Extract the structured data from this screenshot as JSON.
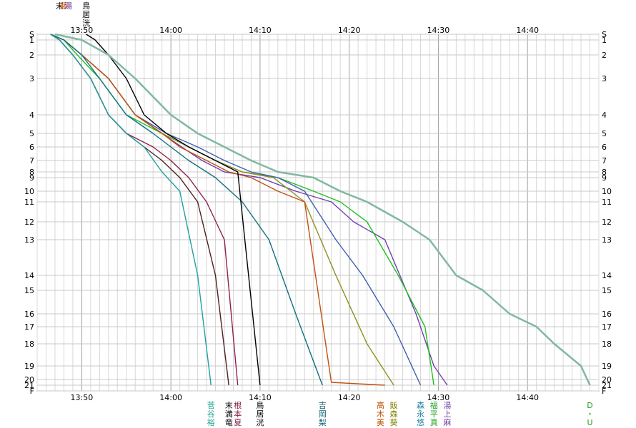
{
  "chart_data": {
    "type": "line",
    "title": "",
    "xlabel": "",
    "ylabel": "",
    "x_ticks": [
      "13:50",
      "14:00",
      "14:10",
      "14:20",
      "14:30",
      "14:40"
    ],
    "x_range": [
      "13:45",
      "14:48"
    ],
    "y_ticks": [
      "S",
      "1",
      "2",
      "3",
      "4",
      "5",
      "6",
      "7",
      "8",
      "9",
      "10",
      "11",
      "12",
      "13",
      "14",
      "15",
      "16",
      "17",
      "18",
      "19",
      "20",
      "21",
      "F"
    ],
    "grid": true,
    "legend": "labels at line ends (top and bottom)",
    "top_labels": [
      {
        "text": "末",
        "x": "13:47.5",
        "color": "#000000"
      },
      {
        "text": "藤",
        "x": "13:48.0",
        "color": "#c05000"
      },
      {
        "text": "湯",
        "x": "13:48.5",
        "color": "#7040a0"
      },
      {
        "text": "鳥居洸",
        "x": "13:50.5",
        "color": "#000000"
      }
    ],
    "bottom_labels": [
      {
        "text": "菅谷裕",
        "x": "14:04.5",
        "color": "#20a090"
      },
      {
        "text": "末満竜",
        "x": "14:06.5",
        "color": "#000000"
      },
      {
        "text": "根本夏",
        "x": "14:07.5",
        "color": "#802040"
      },
      {
        "text": "鳥居洸",
        "x": "14:10.0",
        "color": "#000000"
      },
      {
        "text": "吉岡梨",
        "x": "14:17.0",
        "color": "#106070"
      },
      {
        "text": "高木美",
        "x": "14:23.5",
        "color": "#c05000"
      },
      {
        "text": "飯森葵",
        "x": "14:25.0",
        "color": "#808000"
      },
      {
        "text": "森永悠",
        "x": "14:28.0",
        "color": "#2080a0"
      },
      {
        "text": "福平真",
        "x": "14:29.5",
        "color": "#20a020"
      },
      {
        "text": "湯上麻",
        "x": "14:31.0",
        "color": "#7040a0"
      },
      {
        "text": "D・U・B",
        "x": "14:47.0",
        "color": "#20a020"
      }
    ],
    "series": [
      {
        "name": "湯上麻",
        "color": "#7040b0",
        "x": [
          "13:46.5",
          "13:48.0",
          "13:50.0",
          "13:53.0",
          "13:56.0",
          "13:59.0",
          "14:01.2",
          "14:03.5",
          "14:06.0",
          "14:10.0",
          "14:14.0",
          "14:18.0",
          "14:20.5",
          "14:24.0",
          "14:27.5",
          "14:29.5",
          "14:31.0"
        ],
        "y": [
          0,
          1,
          2,
          3,
          4,
          5,
          6,
          7,
          8,
          9,
          10,
          11,
          12,
          13,
          16,
          19,
          21
        ]
      },
      {
        "name": "福平真",
        "color": "#20c020",
        "x": [
          "13:46.5",
          "13:48.0",
          "13:49.5",
          "13:52.0",
          "13:55.0",
          "13:59.0",
          "14:02.0",
          "14:05.0",
          "14:08.0",
          "14:12.0",
          "14:16.0",
          "14:19.0",
          "14:22.0",
          "14:25.5",
          "14:28.5",
          "14:29.5"
        ],
        "y": [
          0,
          1,
          2,
          3,
          4,
          5,
          6,
          7,
          8,
          9,
          10,
          11,
          12,
          14,
          17,
          21
        ]
      },
      {
        "name": "森永悠",
        "color": "#4060b0",
        "x": [
          "13:46.5",
          "13:48.0",
          "13:50.0",
          "13:53.0",
          "13:56.0",
          "13:59.5",
          "14:03.0",
          "14:06.0",
          "14:09.0",
          "14:12.0",
          "14:15.0",
          "14:18.5",
          "14:20.0",
          "14:21.5",
          "14:25.0",
          "14:28.0"
        ],
        "y": [
          0,
          1,
          2,
          3,
          4,
          5,
          6,
          7,
          8,
          9,
          10,
          13,
          13.5,
          14,
          17,
          21
        ]
      },
      {
        "name": "飯森葵",
        "color": "#909020",
        "x": [
          "13:46.5",
          "13:48.0",
          "13:50.0",
          "13:53.0",
          "13:56.0",
          "13:59.0",
          "14:02.0",
          "14:05.0",
          "14:08.0",
          "14:11.5",
          "14:15.0",
          "14:18.5",
          "14:22.0",
          "14:25.0"
        ],
        "y": [
          0,
          1,
          2,
          3,
          4,
          5,
          6,
          7,
          8,
          9,
          11,
          14,
          18,
          21
        ]
      },
      {
        "name": "高木美",
        "color": "#c05010",
        "x": [
          "13:46.5",
          "13:48.0",
          "13:50.0",
          "13:53.0",
          "13:56.0",
          "13:59.0",
          "14:01.0",
          "14:04.0",
          "14:06.5",
          "14:09.0",
          "14:12.0",
          "14:15.0",
          "14:18.0",
          "14:24.0"
        ],
        "y": [
          0,
          1,
          2,
          3,
          4,
          5,
          6,
          7,
          8,
          9,
          10,
          11,
          20.5,
          21
        ]
      },
      {
        "name": "吉岡梨",
        "color": "#107080",
        "x": [
          "13:46.5",
          "13:48.0",
          "13:50.0",
          "13:52.0",
          "13:55.0",
          "13:58.0",
          "14:00.0",
          "14:02.0",
          "14:05.0",
          "14:08.0",
          "14:11.0",
          "14:14.0",
          "14:17.0"
        ],
        "y": [
          0,
          1,
          2,
          3,
          4,
          5,
          6,
          7,
          9,
          11,
          13,
          16,
          21
        ]
      },
      {
        "name": "鳥居洸",
        "color": "#000000",
        "x": [
          "13:50.5",
          "13:51.5",
          "13:53.0",
          "13:55.0",
          "13:57.0",
          "13:59.5",
          "14:02.0",
          "14:05.0",
          "14:07.5",
          "14:10.0"
        ],
        "y": [
          0,
          1,
          2,
          3,
          4,
          5,
          6,
          7,
          8,
          21
        ]
      },
      {
        "name": "根本夏",
        "color": "#902050",
        "x": [
          "13:46.5",
          "13:47.5",
          "13:49.0",
          "13:51.0",
          "13:53.0",
          "13:55.0",
          "13:58.0",
          "14:00.0",
          "14:02.0",
          "14:04.0",
          "14:06.0",
          "14:07.5"
        ],
        "y": [
          0,
          1,
          2,
          3,
          4,
          5,
          6,
          7,
          9,
          11,
          13,
          21
        ]
      },
      {
        "name": "末満竜",
        "color": "#502020",
        "x": [
          "13:46.5",
          "13:47.5",
          "13:49.0",
          "13:51.0",
          "13:53.0",
          "13:55.0",
          "13:57.0",
          "13:59.0",
          "14:01.0",
          "14:03.0",
          "14:05.0",
          "14:06.5"
        ],
        "y": [
          0,
          1,
          2,
          3,
          4,
          5,
          6,
          7,
          9,
          11,
          14,
          21
        ]
      },
      {
        "name": "菅谷裕",
        "color": "#20a0a0",
        "x": [
          "13:46.5",
          "13:47.5",
          "13:49.0",
          "13:51.0",
          "13:53.0",
          "13:55.0",
          "13:57.0",
          "13:59.0",
          "14:01.0",
          "14:03.0",
          "14:04.5"
        ],
        "y": [
          0,
          1,
          2,
          3,
          4,
          5,
          6,
          8,
          10,
          14,
          21
        ]
      },
      {
        "name": "D・U・B",
        "color": "#80b8a0",
        "x": [
          "13:47.0",
          "13:50.0",
          "13:53.0",
          "13:56.0",
          "14:00.0",
          "14:03.0",
          "14:06.0",
          "14:09.0",
          "14:12.0",
          "14:16.0",
          "14:19.0",
          "14:22.0",
          "14:26.0",
          "14:29.0",
          "14:32.0",
          "14:35.0",
          "14:38.0",
          "14:41.0",
          "14:43.0",
          "14:46.0",
          "14:47.0"
        ],
        "y": [
          0,
          1,
          2,
          3,
          4,
          5,
          6,
          7,
          8,
          9,
          10,
          11,
          12,
          13,
          14,
          15,
          16,
          17,
          18,
          19,
          21
        ]
      }
    ]
  }
}
